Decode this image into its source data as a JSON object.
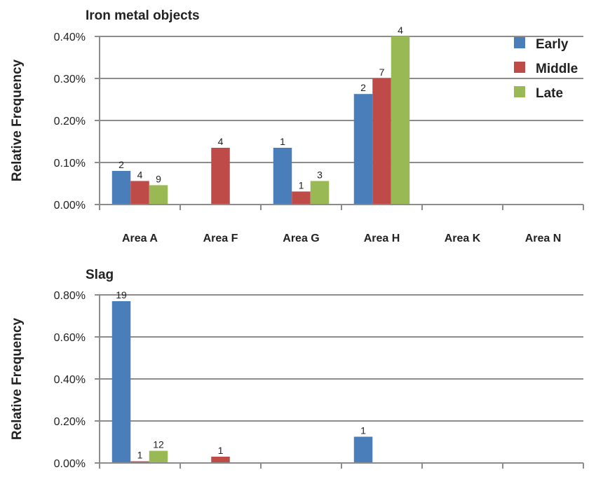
{
  "chart_data": [
    {
      "type": "bar",
      "title": "Iron metal objects",
      "xlabel": "",
      "ylabel": "Relative Frequency",
      "ylim": [
        0,
        0.4
      ],
      "y_ticks": [
        "0.00%",
        "0.10%",
        "0.20%",
        "0.30%",
        "0.40%"
      ],
      "y_tick_values": [
        0,
        0.1,
        0.2,
        0.3,
        0.4
      ],
      "grid": true,
      "legend": "top-right",
      "categories": [
        "Area A",
        "Area F",
        "Area G",
        "Area H",
        "Area K",
        "Area N"
      ],
      "series": [
        {
          "name": "Early",
          "color": "#4a7ebb",
          "values": [
            0.08,
            null,
            0.135,
            0.263,
            null,
            null
          ],
          "labels": [
            "2",
            "",
            "1",
            "2",
            "",
            ""
          ]
        },
        {
          "name": "Middle",
          "color": "#be4b48",
          "values": [
            0.056,
            0.135,
            0.031,
            0.3,
            null,
            null
          ],
          "labels": [
            "4",
            "4",
            "1",
            "7",
            "",
            ""
          ]
        },
        {
          "name": "Late",
          "color": "#98b954",
          "values": [
            0.046,
            null,
            0.056,
            0.4,
            null,
            null
          ],
          "labels": [
            "9",
            "",
            "3",
            "4",
            "",
            ""
          ]
        }
      ]
    },
    {
      "type": "bar",
      "title": "Slag",
      "xlabel": "",
      "ylabel": "Relative Frequency",
      "ylim": [
        0,
        0.8
      ],
      "y_ticks": [
        "0.00%",
        "0.20%",
        "0.40%",
        "0.60%",
        "0.80%"
      ],
      "y_tick_values": [
        0,
        0.2,
        0.4,
        0.6,
        0.8
      ],
      "grid": true,
      "series": [
        {
          "name": "Early",
          "color": "#4a7ebb",
          "values": [
            0.77,
            null,
            null,
            0.125,
            null,
            null
          ],
          "labels": [
            "19",
            "",
            "",
            "1",
            "",
            ""
          ]
        },
        {
          "name": "Middle",
          "color": "#be4b48",
          "values": [
            0.008,
            0.03,
            null,
            null,
            null,
            null
          ],
          "labels": [
            "1",
            "1",
            "",
            "",
            "",
            ""
          ]
        },
        {
          "name": "Late",
          "color": "#98b954",
          "values": [
            0.058,
            null,
            null,
            null,
            null,
            null
          ],
          "labels": [
            "12",
            "",
            "",
            "",
            "",
            ""
          ]
        }
      ]
    }
  ]
}
